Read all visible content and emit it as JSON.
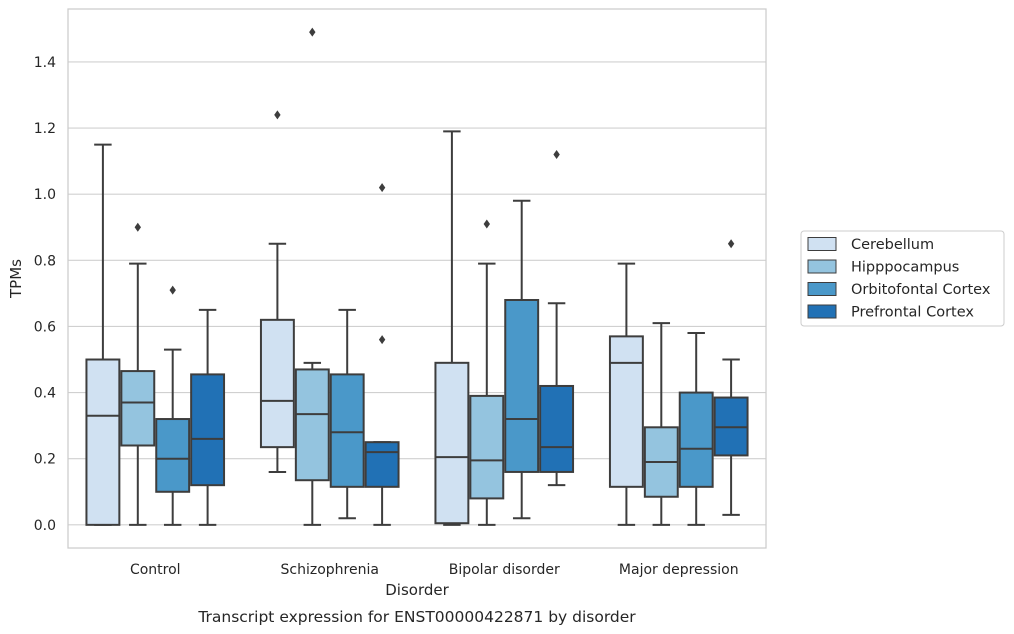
{
  "chart_data": {
    "type": "box",
    "caption": "Transcript expression for ENST00000422871 by disorder",
    "xlabel": "Disorder",
    "ylabel": "TPMs",
    "ylim": [
      -0.07,
      1.56
    ],
    "yticks": [
      0.0,
      0.2,
      0.4,
      0.6,
      0.8,
      1.0,
      1.2,
      1.4
    ],
    "ytick_labels": [
      "0.0",
      "0.2",
      "0.4",
      "0.6",
      "0.8",
      "1.0",
      "1.2",
      "1.4"
    ],
    "grid": "horizontal",
    "legend_placement": "right",
    "categories": [
      "Control",
      "Schizophrenia",
      "Bipolar disorder",
      "Major depression"
    ],
    "series": [
      {
        "name": "Cerebellum",
        "color": "#d0e1f2",
        "boxes": [
          {
            "whisker_low": 0.0,
            "q1": 0.0,
            "median": 0.33,
            "q3": 0.5,
            "whisker_high": 1.15,
            "outliers": []
          },
          {
            "whisker_low": 0.16,
            "q1": 0.235,
            "median": 0.375,
            "q3": 0.62,
            "whisker_high": 0.85,
            "outliers": [
              1.24
            ]
          },
          {
            "whisker_low": 0.0,
            "q1": 0.005,
            "median": 0.205,
            "q3": 0.49,
            "whisker_high": 1.19,
            "outliers": []
          },
          {
            "whisker_low": 0.0,
            "q1": 0.115,
            "median": 0.49,
            "q3": 0.57,
            "whisker_high": 0.79,
            "outliers": []
          }
        ]
      },
      {
        "name": "Hipppocampus",
        "color": "#94c4df",
        "boxes": [
          {
            "whisker_low": 0.0,
            "q1": 0.24,
            "median": 0.37,
            "q3": 0.465,
            "whisker_high": 0.79,
            "outliers": [
              0.9
            ]
          },
          {
            "whisker_low": 0.0,
            "q1": 0.135,
            "median": 0.335,
            "q3": 0.47,
            "whisker_high": 0.49,
            "outliers": [
              1.49
            ]
          },
          {
            "whisker_low": 0.0,
            "q1": 0.08,
            "median": 0.195,
            "q3": 0.39,
            "whisker_high": 0.79,
            "outliers": [
              0.91
            ]
          },
          {
            "whisker_low": 0.0,
            "q1": 0.085,
            "median": 0.19,
            "q3": 0.295,
            "whisker_high": 0.61,
            "outliers": []
          }
        ]
      },
      {
        "name": "Orbitofontal Cortex",
        "color": "#4a98c9",
        "boxes": [
          {
            "whisker_low": 0.0,
            "q1": 0.1,
            "median": 0.2,
            "q3": 0.32,
            "whisker_high": 0.53,
            "outliers": [
              0.71
            ]
          },
          {
            "whisker_low": 0.02,
            "q1": 0.115,
            "median": 0.28,
            "q3": 0.455,
            "whisker_high": 0.65,
            "outliers": []
          },
          {
            "whisker_low": 0.02,
            "q1": 0.16,
            "median": 0.32,
            "q3": 0.68,
            "whisker_high": 0.98,
            "outliers": []
          },
          {
            "whisker_low": 0.0,
            "q1": 0.115,
            "median": 0.23,
            "q3": 0.4,
            "whisker_high": 0.58,
            "outliers": []
          }
        ]
      },
      {
        "name": "Prefrontal Cortex",
        "color": "#2171b5",
        "boxes": [
          {
            "whisker_low": 0.0,
            "q1": 0.12,
            "median": 0.26,
            "q3": 0.455,
            "whisker_high": 0.65,
            "outliers": []
          },
          {
            "whisker_low": 0.0,
            "q1": 0.115,
            "median": 0.22,
            "q3": 0.25,
            "whisker_high": 0.25,
            "outliers": [
              0.56,
              1.02
            ]
          },
          {
            "whisker_low": 0.12,
            "q1": 0.16,
            "median": 0.235,
            "q3": 0.42,
            "whisker_high": 0.67,
            "outliers": [
              1.12
            ]
          },
          {
            "whisker_low": 0.03,
            "q1": 0.21,
            "median": 0.295,
            "q3": 0.385,
            "whisker_high": 0.5,
            "outliers": [
              0.85
            ]
          }
        ]
      }
    ]
  }
}
